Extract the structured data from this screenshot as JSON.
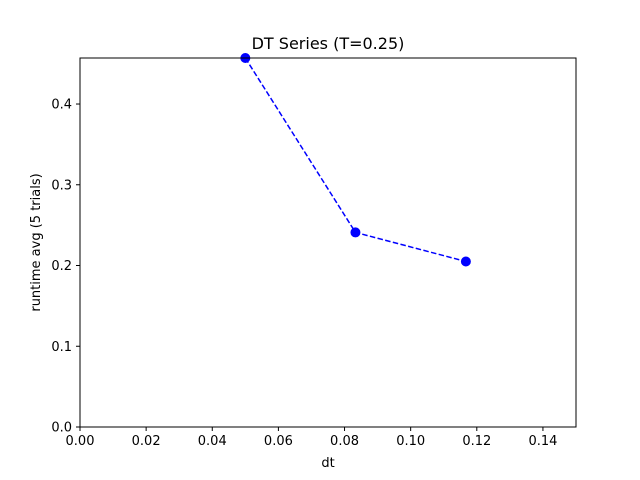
{
  "chart_data": {
    "type": "line",
    "title": "DT Series (T=0.25)",
    "xlabel": "dt",
    "ylabel": "runtime avg (5 trials)",
    "xlim": [
      0,
      0.15
    ],
    "ylim": [
      0,
      0.457
    ],
    "xticks": [
      "0.00",
      "0.02",
      "0.04",
      "0.06",
      "0.08",
      "0.10",
      "0.12",
      "0.14"
    ],
    "yticks": [
      "0.0",
      "0.1",
      "0.2",
      "0.3",
      "0.4"
    ],
    "grid": false,
    "series": [
      {
        "x": [
          0.05,
          0.0833,
          0.1167
        ],
        "y": [
          0.457,
          0.241,
          0.205
        ],
        "color": "#0000ff",
        "line_style": "dashed",
        "marker": "circle"
      }
    ]
  }
}
